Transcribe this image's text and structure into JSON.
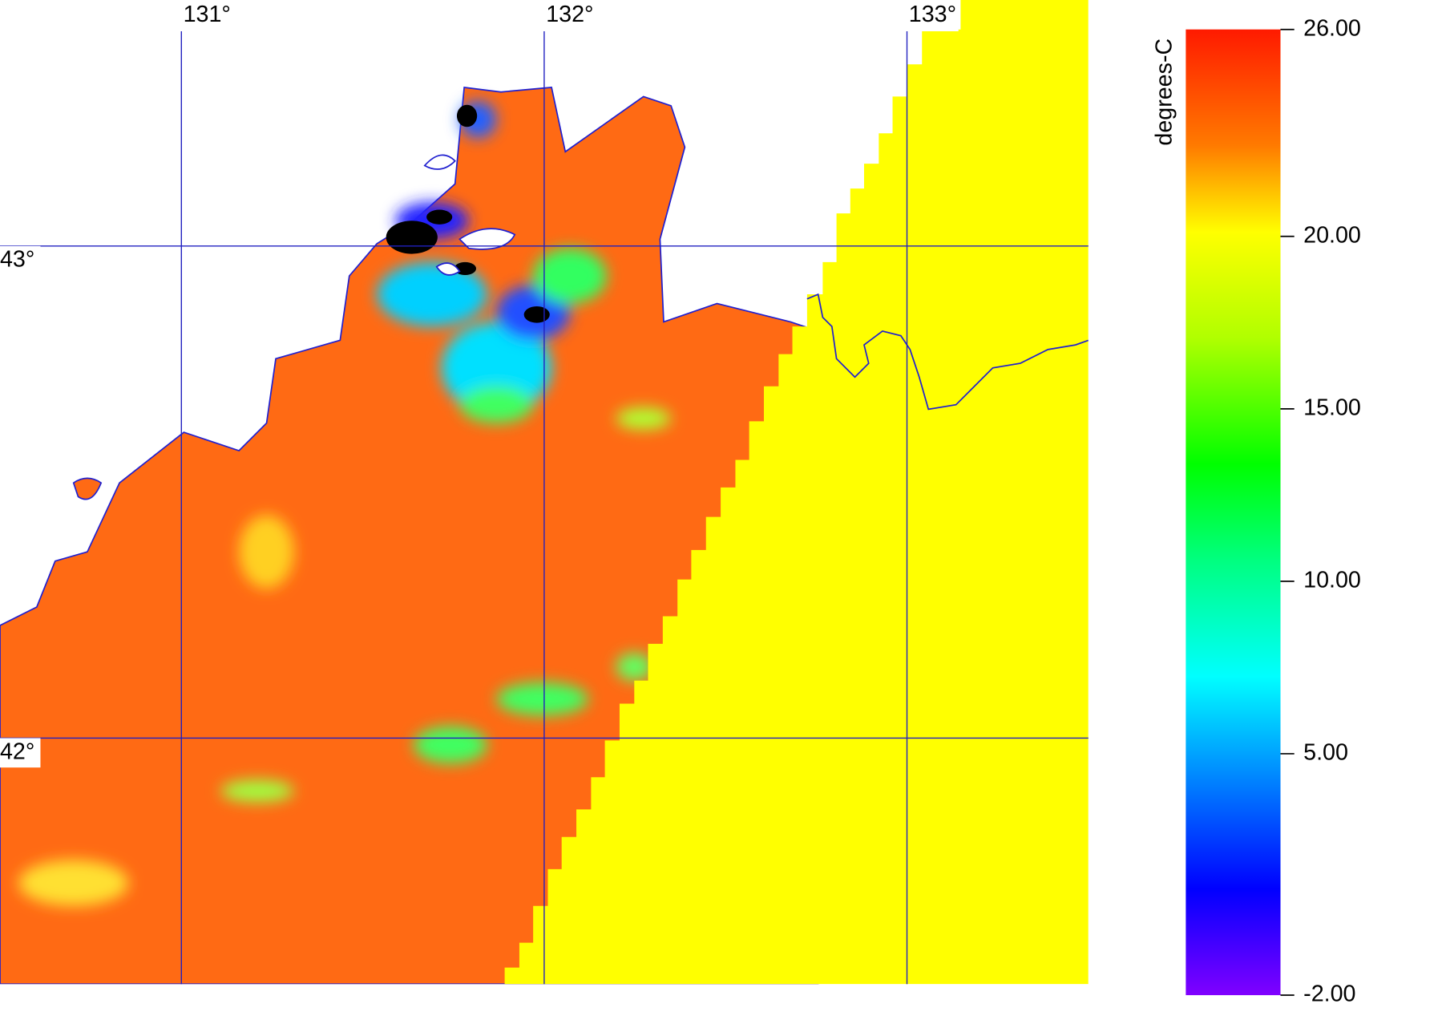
{
  "map": {
    "xlim": [
      130.5,
      133.5
    ],
    "ylim": [
      41.5,
      43.5
    ],
    "xticks": [
      {
        "value": 131,
        "label": "131°"
      },
      {
        "value": 132,
        "label": "132°"
      },
      {
        "value": 133,
        "label": "133°"
      }
    ],
    "yticks": [
      {
        "value": 43,
        "label": "43°"
      },
      {
        "value": 42,
        "label": "42°"
      }
    ]
  },
  "colorbar": {
    "label": "degrees-C",
    "lim": [
      -2,
      26
    ],
    "ticks": [
      {
        "value": 26,
        "label": "26.00"
      },
      {
        "value": 20,
        "label": "20.00"
      },
      {
        "value": 15,
        "label": "15.00"
      },
      {
        "value": 10,
        "label": "10.00"
      },
      {
        "value": 5,
        "label": "5.00"
      },
      {
        "value": -2,
        "label": "-2.00"
      }
    ]
  }
}
